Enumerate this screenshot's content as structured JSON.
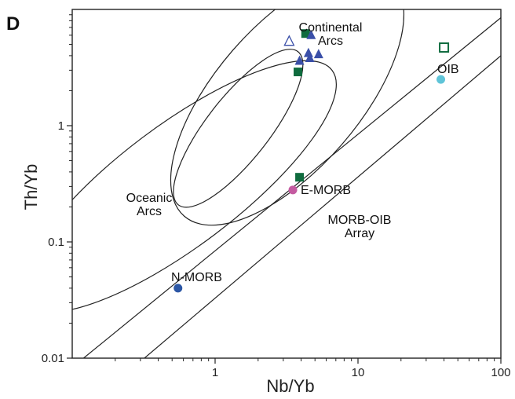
{
  "chart_data": {
    "type": "scatter",
    "panel_label": "D",
    "title": "",
    "xlabel": "Nb/Yb",
    "ylabel": "Th/Yb",
    "x_scale": "log",
    "y_scale": "log",
    "xlim": [
      0.1,
      100
    ],
    "ylim": [
      0.01,
      10
    ],
    "x_ticks": [
      {
        "value": 1,
        "label": "1"
      },
      {
        "value": 10,
        "label": "10"
      },
      {
        "value": 100,
        "label": "100"
      }
    ],
    "y_ticks": [
      {
        "value": 0.01,
        "label": "0.01"
      },
      {
        "value": 0.1,
        "label": "0.1"
      },
      {
        "value": 1,
        "label": "1"
      }
    ],
    "grid": false,
    "fields": [
      {
        "type": "ellipse",
        "label": "Continental Arcs",
        "cx": 3.2,
        "cy": 1.75,
        "rx_decades": 1.1,
        "ry_decades": 0.62,
        "rotation_deg": -49
      },
      {
        "type": "ellipse",
        "label": "Oceanic Arcs",
        "cx": 0.55,
        "cy": 0.3,
        "rx_decades": 1.35,
        "ry_decades": 0.52,
        "rotation_deg": -37
      },
      {
        "type": "ellipse",
        "label": "",
        "cx": 1.45,
        "cy": 0.95,
        "rx_decades": 0.68,
        "ry_decades": 0.27,
        "rotation_deg": -52
      }
    ],
    "array_lines": [
      {
        "label": "MORB-OIB Array",
        "points": [
          [
            0.12,
            0.01
          ],
          [
            200,
            17
          ]
        ]
      },
      {
        "label": "",
        "points": [
          [
            0.32,
            0.01
          ],
          [
            100,
            4
          ]
        ]
      }
    ],
    "reference_points": [
      {
        "label": "N-MORB",
        "x": 0.55,
        "y": 0.04,
        "color": "#2c57a5"
      },
      {
        "label": "E-MORB",
        "x": 3.5,
        "y": 0.28,
        "color": "#c45aa0"
      },
      {
        "label": "OIB",
        "x": 38,
        "y": 2.5,
        "color": "#5fc4d8"
      }
    ],
    "samples": [
      {
        "marker": "square-filled",
        "color": "#0f6b3e",
        "points": [
          [
            4.3,
            6.2
          ],
          [
            3.8,
            2.9
          ],
          [
            3.9,
            0.36
          ]
        ]
      },
      {
        "marker": "square-open",
        "color": "#0f6b3e",
        "points": [
          [
            40,
            4.7
          ]
        ]
      },
      {
        "marker": "triangle-filled",
        "color": "#3a4fa8",
        "points": [
          [
            4.7,
            6.0
          ],
          [
            4.5,
            4.2
          ],
          [
            5.3,
            4.1
          ],
          [
            4.6,
            3.8
          ],
          [
            3.9,
            3.6
          ]
        ]
      },
      {
        "marker": "triangle-open",
        "color": "#3a4fa8",
        "points": [
          [
            3.3,
            5.3
          ]
        ]
      }
    ]
  }
}
